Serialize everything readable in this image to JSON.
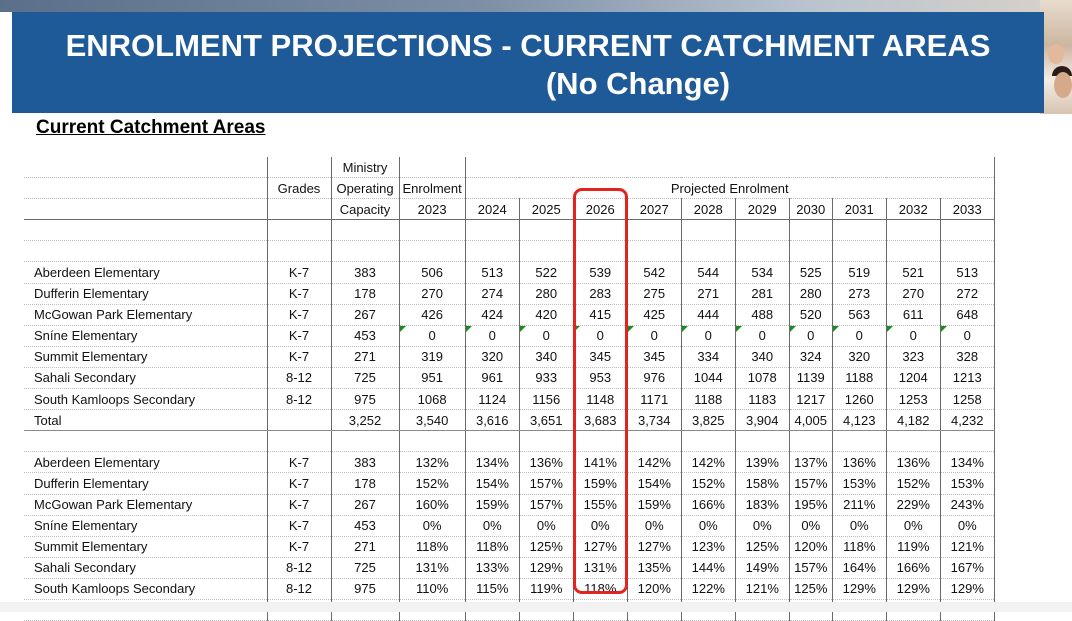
{
  "title": {
    "line1": "ENROLMENT PROJECTIONS - CURRENT CATCHMENT AREAS",
    "line2": "(No Change)"
  },
  "section_title": "Current Catchment Areas",
  "headers": {
    "grades": "Grades",
    "capacity_line1": "Ministry",
    "capacity_line2": "Operating",
    "capacity_line3": "Capacity",
    "enrolment_line1": "Enrolment",
    "enrolment_year": "2023",
    "projected": "Projected Enrolment",
    "years": [
      "2024",
      "2025",
      "2026",
      "2027",
      "2028",
      "2029",
      "2030",
      "2031",
      "2032",
      "2033"
    ]
  },
  "enrolment_rows": [
    {
      "name": "Aberdeen Elementary",
      "grades": "K-7",
      "capacity": "383",
      "e2023": "506",
      "proj": [
        "513",
        "522",
        "539",
        "542",
        "544",
        "534",
        "525",
        "519",
        "521",
        "513"
      ]
    },
    {
      "name": "Dufferin Elementary",
      "grades": "K-7",
      "capacity": "178",
      "e2023": "270",
      "proj": [
        "274",
        "280",
        "283",
        "275",
        "271",
        "281",
        "280",
        "273",
        "270",
        "272"
      ]
    },
    {
      "name": "McGowan Park Elementary",
      "grades": "K-7",
      "capacity": "267",
      "e2023": "426",
      "proj": [
        "424",
        "420",
        "415",
        "425",
        "444",
        "488",
        "520",
        "563",
        "611",
        "648"
      ]
    },
    {
      "name": "Sníne Elementary",
      "grades": "K-7",
      "capacity": "453",
      "e2023": "0",
      "proj": [
        "0",
        "0",
        "0",
        "0",
        "0",
        "0",
        "0",
        "0",
        "0",
        "0"
      ]
    },
    {
      "name": "Summit Elementary",
      "grades": "K-7",
      "capacity": "271",
      "e2023": "319",
      "proj": [
        "320",
        "340",
        "345",
        "345",
        "334",
        "340",
        "324",
        "320",
        "323",
        "328"
      ]
    },
    {
      "name": "Sahali Secondary",
      "grades": "8-12",
      "capacity": "725",
      "e2023": "951",
      "proj": [
        "961",
        "933",
        "953",
        "976",
        "1044",
        "1078",
        "1139",
        "1188",
        "1204",
        "1213"
      ]
    },
    {
      "name": "South Kamloops Secondary",
      "grades": "8-12",
      "capacity": "975",
      "e2023": "1068",
      "proj": [
        "1124",
        "1156",
        "1148",
        "1171",
        "1188",
        "1183",
        "1217",
        "1260",
        "1253",
        "1258"
      ]
    }
  ],
  "total_row": {
    "name": "Total",
    "grades": "",
    "capacity": "3,252",
    "e2023": "3,540",
    "proj": [
      "3,616",
      "3,651",
      "3,683",
      "3,734",
      "3,825",
      "3,904",
      "4,005",
      "4,123",
      "4,182",
      "4,232"
    ]
  },
  "percent_rows": [
    {
      "name": "Aberdeen Elementary",
      "grades": "K-7",
      "capacity": "383",
      "e2023": "132%",
      "proj": [
        "134%",
        "136%",
        "141%",
        "142%",
        "142%",
        "139%",
        "137%",
        "136%",
        "136%",
        "134%"
      ]
    },
    {
      "name": "Dufferin Elementary",
      "grades": "K-7",
      "capacity": "178",
      "e2023": "152%",
      "proj": [
        "154%",
        "157%",
        "159%",
        "154%",
        "152%",
        "158%",
        "157%",
        "153%",
        "152%",
        "153%"
      ]
    },
    {
      "name": "McGowan Park Elementary",
      "grades": "K-7",
      "capacity": "267",
      "e2023": "160%",
      "proj": [
        "159%",
        "157%",
        "155%",
        "159%",
        "166%",
        "183%",
        "195%",
        "211%",
        "229%",
        "243%"
      ]
    },
    {
      "name": "Sníne Elementary",
      "grades": "K-7",
      "capacity": "453",
      "e2023": "0%",
      "proj": [
        "0%",
        "0%",
        "0%",
        "0%",
        "0%",
        "0%",
        "0%",
        "0%",
        "0%",
        "0%"
      ]
    },
    {
      "name": "Summit Elementary",
      "grades": "K-7",
      "capacity": "271",
      "e2023": "118%",
      "proj": [
        "118%",
        "125%",
        "127%",
        "127%",
        "123%",
        "125%",
        "120%",
        "118%",
        "119%",
        "121%"
      ]
    },
    {
      "name": "Sahali Secondary",
      "grades": "8-12",
      "capacity": "725",
      "e2023": "131%",
      "proj": [
        "133%",
        "129%",
        "131%",
        "135%",
        "144%",
        "149%",
        "157%",
        "164%",
        "166%",
        "167%"
      ]
    },
    {
      "name": "South Kamloops Secondary",
      "grades": "8-12",
      "capacity": "975",
      "e2023": "110%",
      "proj": [
        "115%",
        "119%",
        "118%",
        "120%",
        "122%",
        "121%",
        "125%",
        "129%",
        "129%",
        "129%"
      ]
    }
  ],
  "colors": {
    "banner": "#1e5a97",
    "highlight": "#e3231d",
    "note_marker": "#1c8a1c"
  }
}
